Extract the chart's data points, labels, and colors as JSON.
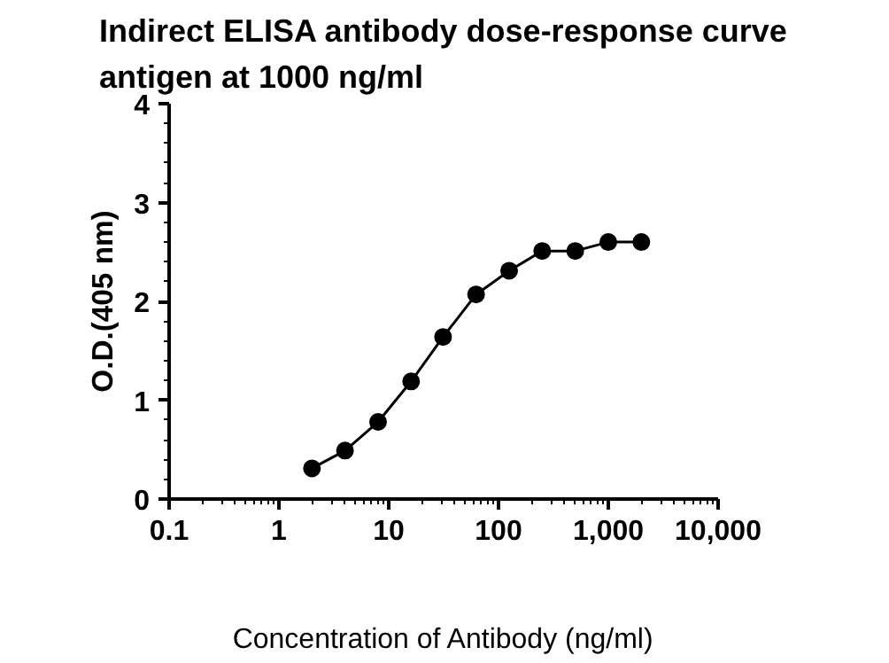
{
  "chart_data": {
    "type": "line",
    "title": "Indirect ELISA antibody dose-response curve\nantigen at 1000 ng/ml",
    "xlabel": "Concentration of Antibody (ng/ml)",
    "ylabel": "O.D.(405 nm)",
    "x": [
      2,
      4,
      8,
      16,
      31.25,
      62.5,
      125,
      250,
      500,
      1000,
      2000
    ],
    "series": [
      {
        "color": "#000000",
        "values": [
          0.31,
          0.49,
          0.78,
          1.19,
          1.64,
          2.07,
          2.31,
          2.51,
          2.51,
          2.6,
          2.6
        ]
      }
    ],
    "log": "x",
    "xlim": [
      0.1,
      10000
    ],
    "xticks": [
      0.1,
      1,
      10,
      100,
      {
        "value": 1000,
        "label": "1,000"
      },
      {
        "value": 10000,
        "label": "10,000"
      }
    ],
    "ylim": [
      0,
      4
    ],
    "yticks": [
      0,
      1,
      2,
      3,
      4
    ],
    "grid": false,
    "marker": "circle",
    "line_style": "solid"
  }
}
